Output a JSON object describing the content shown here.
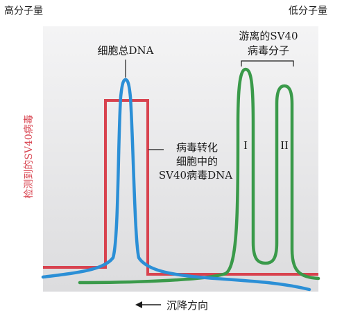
{
  "chart_data": {
    "type": "line",
    "title": "",
    "corner_labels": {
      "left": "高分子量",
      "right": "低分子量"
    },
    "ylabel": "检测到的SV40病毒",
    "xlabel": "沉降方向",
    "series": [
      {
        "key": "total_dna",
        "color": "#2b8fd6"
      },
      {
        "key": "transformed_dna",
        "color": "#d8434f"
      },
      {
        "key": "free_virus",
        "color": "#3a9a4a"
      }
    ],
    "annotations": {
      "total_dna": "细胞总DNA",
      "transformed_dna": [
        "病毒转化",
        "细胞中的",
        "SV40病毒DNA"
      ],
      "free_virus": [
        "游离的SV40",
        "病毒分子"
      ],
      "peak_1": "I",
      "peak_2": "II"
    },
    "colors": {
      "panel": "#e9e9ea",
      "red": "#d8434f",
      "blue": "#2b8fd6",
      "green": "#3a9a4a"
    }
  }
}
